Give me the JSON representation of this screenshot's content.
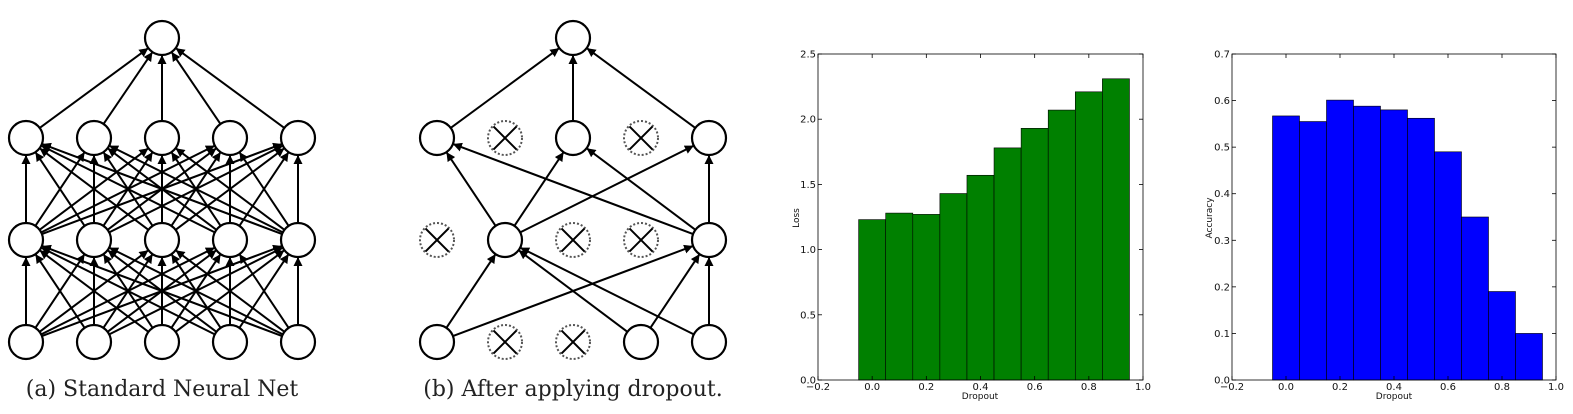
{
  "diagrams": {
    "standard": {
      "caption": "(a) Standard Neural Net"
    },
    "dropout": {
      "caption": "(b) After applying dropout."
    }
  },
  "chart_data": [
    {
      "type": "bar",
      "color": "#008000",
      "x": [
        0.0,
        0.1,
        0.2,
        0.3,
        0.4,
        0.5,
        0.6,
        0.7,
        0.8,
        0.9
      ],
      "values": [
        1.23,
        1.28,
        1.27,
        1.43,
        1.57,
        1.78,
        1.93,
        2.07,
        2.21,
        2.31
      ],
      "bar_width": 0.1,
      "xlabel": "Dropout",
      "ylabel": "Loss",
      "xlim": [
        -0.2,
        1.0
      ],
      "ylim": [
        0.0,
        2.5
      ],
      "xticks": [
        "−0.2",
        "0.0",
        "0.2",
        "0.4",
        "0.6",
        "0.8",
        "1.0"
      ],
      "yticks": [
        "0.0",
        "0.5",
        "1.0",
        "1.5",
        "2.0",
        "2.5"
      ],
      "grid": false
    },
    {
      "type": "bar",
      "color": "#0000ff",
      "x": [
        0.0,
        0.1,
        0.2,
        0.3,
        0.4,
        0.5,
        0.6,
        0.7,
        0.8,
        0.9
      ],
      "values": [
        0.567,
        0.555,
        0.601,
        0.588,
        0.58,
        0.562,
        0.49,
        0.35,
        0.19,
        0.1
      ],
      "bar_width": 0.1,
      "xlabel": "Dropout",
      "ylabel": "Accuracy",
      "xlim": [
        -0.2,
        1.0
      ],
      "ylim": [
        0.0,
        0.7
      ],
      "xticks": [
        "−0.2",
        "0.0",
        "0.2",
        "0.4",
        "0.6",
        "0.8",
        "1.0"
      ],
      "yticks": [
        "0.0",
        "0.1",
        "0.2",
        "0.3",
        "0.4",
        "0.5",
        "0.6",
        "0.7"
      ],
      "grid": false
    }
  ]
}
